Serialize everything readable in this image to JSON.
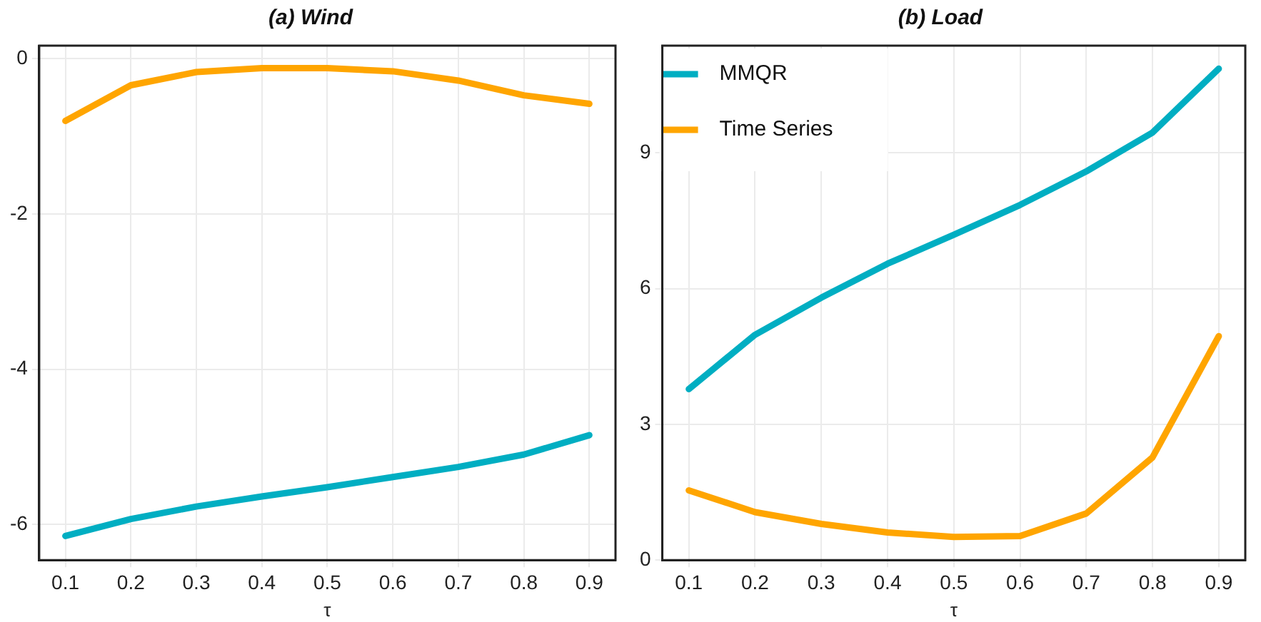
{
  "chart_data": [
    {
      "type": "line",
      "title": "(a) Wind",
      "xlabel": "τ",
      "x": [
        0.1,
        0.2,
        0.3,
        0.4,
        0.5,
        0.6,
        0.7,
        0.8,
        0.9
      ],
      "series": [
        {
          "color": "#00aec2",
          "values": [
            -6.15,
            -5.93,
            -5.77,
            -5.64,
            -5.52,
            -5.39,
            -5.26,
            -5.1,
            -4.85
          ]
        },
        {
          "color": "#ffa500",
          "values": [
            -0.8,
            -0.34,
            -0.17,
            -0.12,
            -0.12,
            -0.16,
            -0.28,
            -0.47,
            -0.58
          ]
        }
      ],
      "xlim": [
        0.06,
        0.94
      ],
      "xticks": [
        0.1,
        0.2,
        0.3,
        0.4,
        0.5,
        0.6,
        0.7,
        0.8,
        0.9
      ],
      "ylim": [
        -6.46,
        0.17
      ],
      "yticks": [
        -6,
        -4,
        -2,
        0
      ],
      "grid": true,
      "legend": false,
      "marker": "none",
      "line_style": "solid"
    },
    {
      "type": "line",
      "title": "(b) Load",
      "xlabel": "τ",
      "x": [
        0.1,
        0.2,
        0.3,
        0.4,
        0.5,
        0.6,
        0.7,
        0.8,
        0.9
      ],
      "series": [
        {
          "name": "MMQR",
          "color": "#00aec2",
          "values": [
            3.78,
            4.98,
            5.8,
            6.55,
            7.19,
            7.85,
            8.59,
            9.45,
            10.86
          ]
        },
        {
          "name": "Time Series",
          "color": "#ffa500",
          "values": [
            1.54,
            1.06,
            0.8,
            0.61,
            0.51,
            0.53,
            1.03,
            2.27,
            4.95
          ]
        }
      ],
      "xlim": [
        0.06,
        0.94
      ],
      "xticks": [
        0.1,
        0.2,
        0.3,
        0.4,
        0.5,
        0.6,
        0.7,
        0.8,
        0.9
      ],
      "ylim": [
        0,
        11.37
      ],
      "yticks": [
        0,
        3,
        6,
        9
      ],
      "grid": true,
      "legend": "top left",
      "marker": "none",
      "line_style": "solid"
    }
  ]
}
